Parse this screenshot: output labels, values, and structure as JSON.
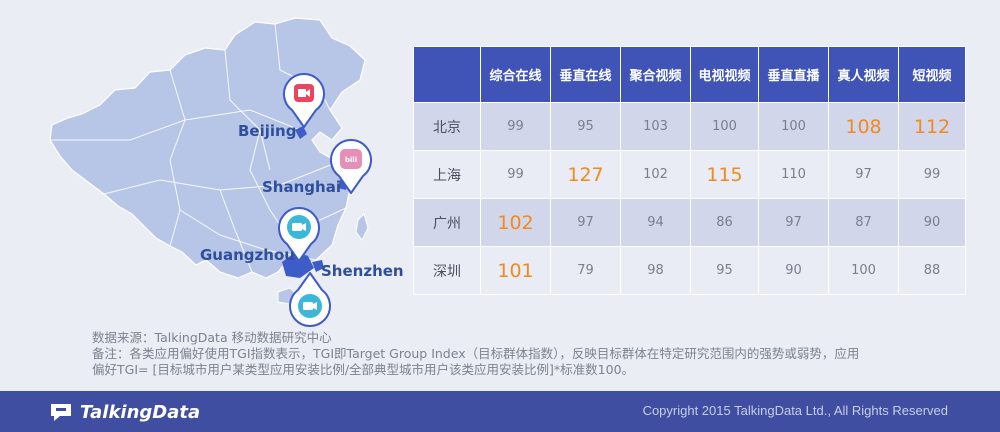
{
  "map": {
    "cities": [
      {
        "name": "Beijing"
      },
      {
        "name": "Shanghai"
      },
      {
        "name": "Guangzhou"
      },
      {
        "name": "Shenzhen"
      }
    ]
  },
  "chart_data": {
    "type": "table",
    "columns": [
      "综合在线",
      "垂直在线",
      "聚合视频",
      "电视视频",
      "垂直直播",
      "真人视频",
      "短视频"
    ],
    "rows": [
      {
        "city": "北京",
        "values": [
          99,
          95,
          103,
          100,
          100,
          108,
          112
        ],
        "highlight": [
          5,
          6
        ]
      },
      {
        "city": "上海",
        "values": [
          99,
          127,
          102,
          115,
          110,
          97,
          99
        ],
        "highlight": [
          1,
          3
        ]
      },
      {
        "city": "广州",
        "values": [
          102,
          97,
          94,
          86,
          97,
          87,
          90
        ],
        "highlight": [
          0
        ]
      },
      {
        "city": "深圳",
        "values": [
          101,
          79,
          98,
          95,
          90,
          100,
          88
        ],
        "highlight": [
          0
        ]
      }
    ],
    "colors": {
      "header": "#3f54b6",
      "highlight": "#f08a1c",
      "row_odd": "#d2d6ea",
      "row_even": "#e9ebf5"
    }
  },
  "notes": {
    "source": "数据来源：TalkingData 移动数据研究中心",
    "remark_line1": "备注：各类应用偏好使用TGI指数表示，TGI即Target Group Index（目标群体指数），反映目标群体在特定研究范围内的强势或弱势，应用",
    "remark_line2": "偏好TGI= [目标城市用户某类型应用安装比例/全部典型城市用户该类应用安装比例]*标准数100。"
  },
  "footer": {
    "logo_text": "TalkingData",
    "copyright": "Copyright 2015 TalkingData Ltd., All Rights Reserved"
  }
}
